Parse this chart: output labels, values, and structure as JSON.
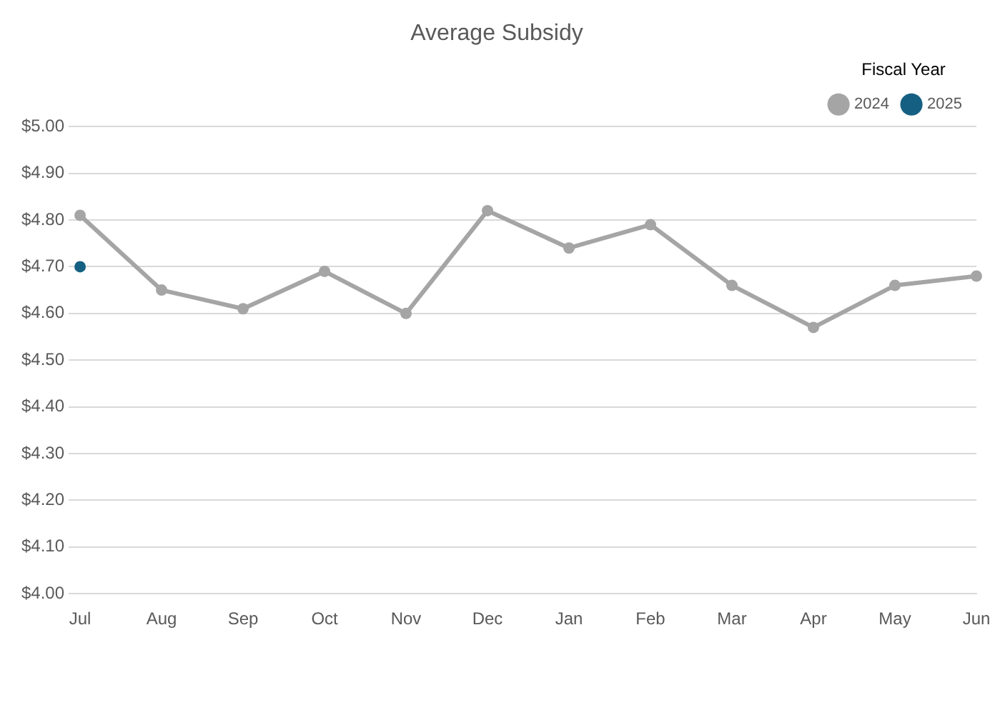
{
  "chart_data": {
    "type": "line",
    "title": "Average Subsidy",
    "legend_title": "Fiscal Year",
    "categories": [
      "Jul",
      "Aug",
      "Sep",
      "Oct",
      "Nov",
      "Dec",
      "Jan",
      "Feb",
      "Mar",
      "Apr",
      "May",
      "Jun"
    ],
    "series": [
      {
        "name": "2024",
        "color": "#a5a5a5",
        "values": [
          4.81,
          4.65,
          4.61,
          4.69,
          4.6,
          4.82,
          4.74,
          4.79,
          4.66,
          4.57,
          4.66,
          4.68
        ]
      },
      {
        "name": "2025",
        "color": "#156082",
        "values": [
          4.7,
          null,
          null,
          null,
          null,
          null,
          null,
          null,
          null,
          null,
          null,
          null
        ]
      }
    ],
    "ylim": [
      4,
      5
    ],
    "yticks": [
      {
        "value": 4,
        "label": "$4.00"
      },
      {
        "value": 4.1,
        "label": "$4.10"
      },
      {
        "value": 4.2,
        "label": "$4.20"
      },
      {
        "value": 4.3,
        "label": "$4.30"
      },
      {
        "value": 4.4,
        "label": "$4.40"
      },
      {
        "value": 4.5,
        "label": "$4.50"
      },
      {
        "value": 4.6,
        "label": "$4.60"
      },
      {
        "value": 4.7,
        "label": "$4.70"
      },
      {
        "value": 4.8,
        "label": "$4.80"
      },
      {
        "value": 4.9,
        "label": "$4.90"
      },
      {
        "value": 5,
        "label": "$5.00"
      }
    ],
    "grid": "y",
    "legend": "top right",
    "marker": "circle",
    "line_style": "solid"
  }
}
